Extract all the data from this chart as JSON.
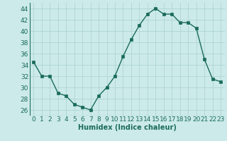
{
  "x": [
    0,
    1,
    2,
    3,
    4,
    5,
    6,
    7,
    8,
    9,
    10,
    11,
    12,
    13,
    14,
    15,
    16,
    17,
    18,
    19,
    20,
    21,
    22,
    23
  ],
  "y": [
    34.5,
    32,
    32,
    29,
    28.5,
    27,
    26.5,
    26,
    28.5,
    30,
    32,
    35.5,
    38.5,
    41,
    43,
    44,
    43,
    43,
    41.5,
    41.5,
    40.5,
    35,
    31.5,
    31
  ],
  "line_color": "#1a6b5a",
  "marker": "s",
  "markersize": 2.5,
  "linewidth": 1.0,
  "xlabel": "Humidex (Indice chaleur)",
  "xlim": [
    -0.5,
    23.5
  ],
  "ylim": [
    25,
    45
  ],
  "yticks": [
    26,
    28,
    30,
    32,
    34,
    36,
    38,
    40,
    42,
    44
  ],
  "xticks": [
    0,
    1,
    2,
    3,
    4,
    5,
    6,
    7,
    8,
    9,
    10,
    11,
    12,
    13,
    14,
    15,
    16,
    17,
    18,
    19,
    20,
    21,
    22,
    23
  ],
  "bg_color": "#cceaea",
  "grid_color": "#b0d4d4",
  "label_fontsize": 7,
  "tick_fontsize": 6.5
}
